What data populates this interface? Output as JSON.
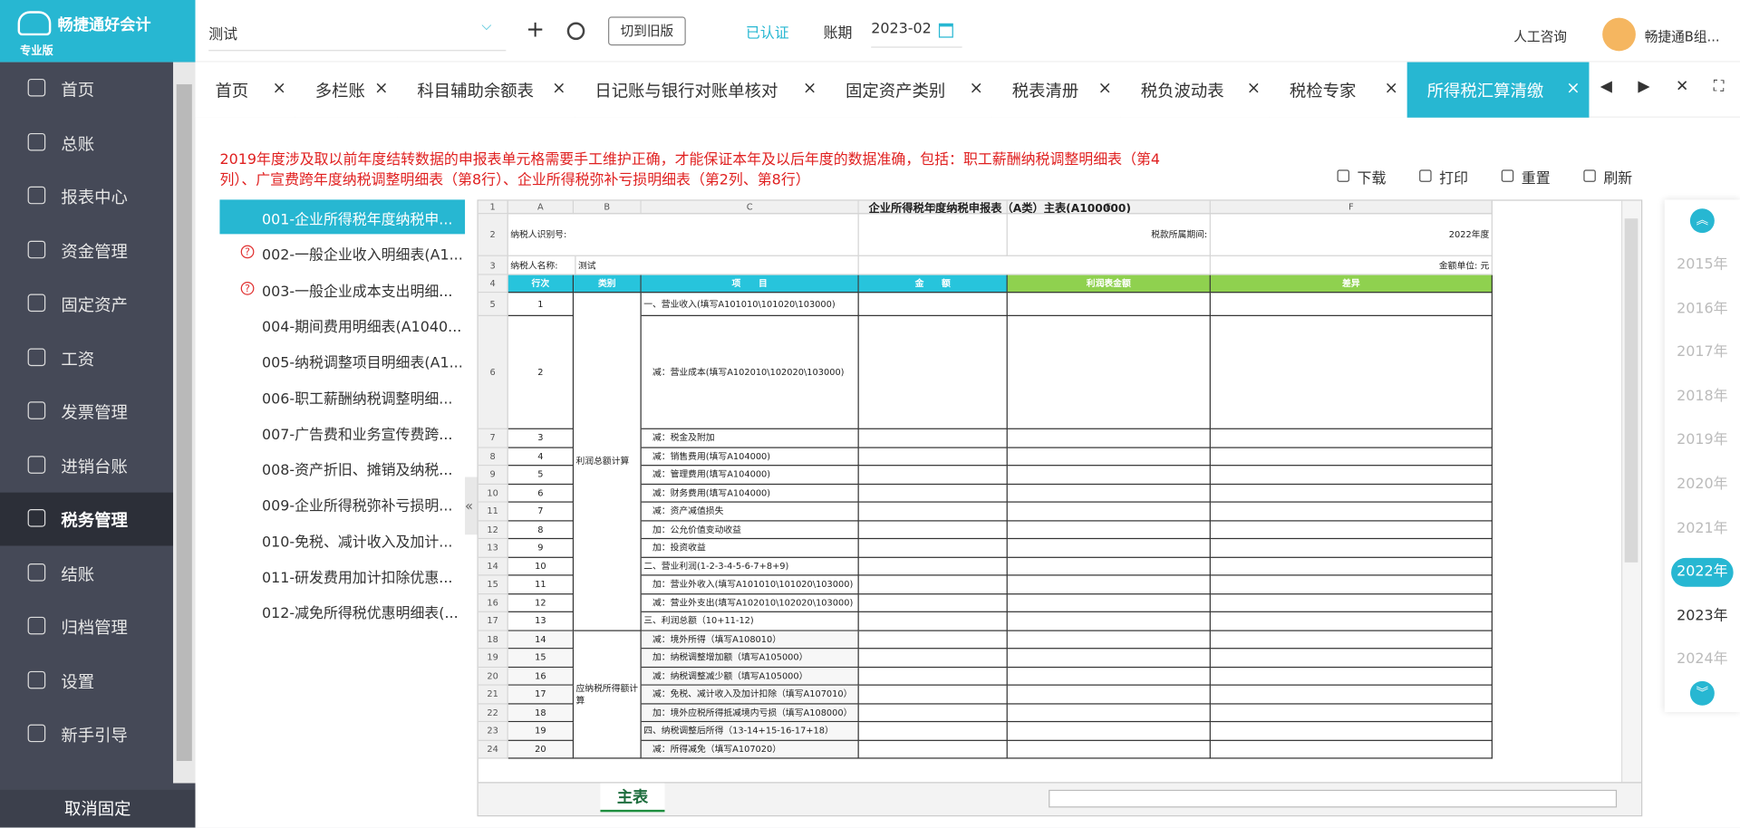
{
  "header": {
    "logo": "畅捷通好会计",
    "edition": "专业版",
    "company": "测试",
    "old_version": "切到旧版",
    "certified": "已认证",
    "period_label": "账期",
    "period": "2023-02",
    "consult": "人工咨询",
    "user": "畅捷通B组..."
  },
  "menu": [
    "首页",
    "总账",
    "报表中心",
    "资金管理",
    "固定资产",
    "工资",
    "发票管理",
    "进销台账",
    "税务管理",
    "结账",
    "归档管理",
    "设置",
    "新手引导"
  ],
  "menu_active": 8,
  "unpin": "取消固定",
  "tabs": [
    "首页",
    "多栏账",
    "科目辅助余额表",
    "日记账与银行对账单核对",
    "固定资产类别",
    "税表清册",
    "税负波动表",
    "税检专家",
    "所得税汇算清缴"
  ],
  "tab_active": 8,
  "notice": "2019年度涉及取以前年度结转数据的申报表单元格需要手工维护正确，才能保证本年及以后年度的数据准确，包括：职工薪酬纳税调整明细表（第4列）、广宣费跨年度纳税调整明细表（第8行）、企业所得税弥补亏损明细表（第2列、第8行）",
  "toolbar": [
    "下载",
    "打印",
    "重置",
    "刷新"
  ],
  "forms": [
    {
      "label": "001-企业所得税年度纳税申...",
      "warn": false
    },
    {
      "label": "002-一般企业收入明细表(A1...",
      "warn": true
    },
    {
      "label": "003-一般企业成本支出明细...",
      "warn": true
    },
    {
      "label": "004-期间费用明细表(A1040...",
      "warn": false
    },
    {
      "label": "005-纳税调整项目明细表(A1...",
      "warn": false
    },
    {
      "label": "006-职工薪酬纳税调整明细...",
      "warn": false
    },
    {
      "label": "007-广告费和业务宣传费跨...",
      "warn": false
    },
    {
      "label": "008-资产折旧、摊销及纳税...",
      "warn": false
    },
    {
      "label": "009-企业所得税弥补亏损明...",
      "warn": false
    },
    {
      "label": "010-免税、减计收入及加计...",
      "warn": false
    },
    {
      "label": "011-研发费用加计扣除优惠...",
      "warn": false
    },
    {
      "label": "012-减免所得税优惠明细表(...",
      "warn": false
    }
  ],
  "form_active": 0,
  "sheet": {
    "columns": [
      "A",
      "B",
      "C",
      "D",
      "E",
      "F"
    ],
    "title": "企业所得税年度纳税申报表（A类）主表(A100000)",
    "taxpayer_id_label": "纳税人识别号:",
    "period_label": "税款所属期间:",
    "period": "2022年度",
    "taxpayer_name_label": "纳税人名称:",
    "taxpayer_name": "测试",
    "unit_label": "金额单位: 元",
    "head": [
      "行次",
      "类别",
      "项　　目",
      "金　　额",
      "利润表金额",
      "差异"
    ],
    "categories": [
      "利润总额计算",
      "应纳税所得额计算"
    ],
    "rows": [
      {
        "n": 5,
        "line": 1,
        "item": "一、营业收入(填写A101010\\101020\\103000)"
      },
      {
        "n": 6,
        "line": 2,
        "item": "减：营业成本(填写A102010\\102020\\103000)"
      },
      {
        "n": 7,
        "line": 3,
        "item": "减：税金及附加"
      },
      {
        "n": 8,
        "line": 4,
        "item": "减：销售费用(填写A104000)"
      },
      {
        "n": 9,
        "line": 5,
        "item": "减：管理费用(填写A104000)"
      },
      {
        "n": 10,
        "line": 6,
        "item": "减：财务费用(填写A104000)"
      },
      {
        "n": 11,
        "line": 7,
        "item": "减：资产减值损失"
      },
      {
        "n": 12,
        "line": 8,
        "item": "加：公允价值变动收益"
      },
      {
        "n": 13,
        "line": 9,
        "item": "加：投资收益"
      },
      {
        "n": 14,
        "line": 10,
        "item": "二、营业利润(1-2-3-4-5-6-7+8+9)"
      },
      {
        "n": 15,
        "line": 11,
        "item": "加：营业外收入(填写A101010\\101020\\103000)"
      },
      {
        "n": 16,
        "line": 12,
        "item": "减：营业外支出(填写A102010\\102020\\103000)"
      },
      {
        "n": 17,
        "line": 13,
        "item": "三、利润总额（10+11-12)"
      },
      {
        "n": 18,
        "line": 14,
        "item": "减：境外所得（填写A108010）"
      },
      {
        "n": 19,
        "line": 15,
        "item": "加：纳税调整增加额（填写A105000）"
      },
      {
        "n": 20,
        "line": 16,
        "item": "减：纳税调整减少额（填写A105000）"
      },
      {
        "n": 21,
        "line": 17,
        "item": "减：免税、减计收入及加计扣除（填写A107010）"
      },
      {
        "n": 22,
        "line": 18,
        "item": "加：境外应税所得抵减境内亏损（填写A108000）"
      },
      {
        "n": 23,
        "line": 19,
        "item": "四、纳税调整后所得（13-14+15-16-17+18）"
      },
      {
        "n": 24,
        "line": 20,
        "item": "减：所得减免（填写A107020）"
      }
    ],
    "sheet_tab": "主表"
  },
  "years": [
    "2015年",
    "2016年",
    "2017年",
    "2018年",
    "2019年",
    "2020年",
    "2021年",
    "2022年",
    "2023年",
    "2024年"
  ],
  "year_active": 7
}
